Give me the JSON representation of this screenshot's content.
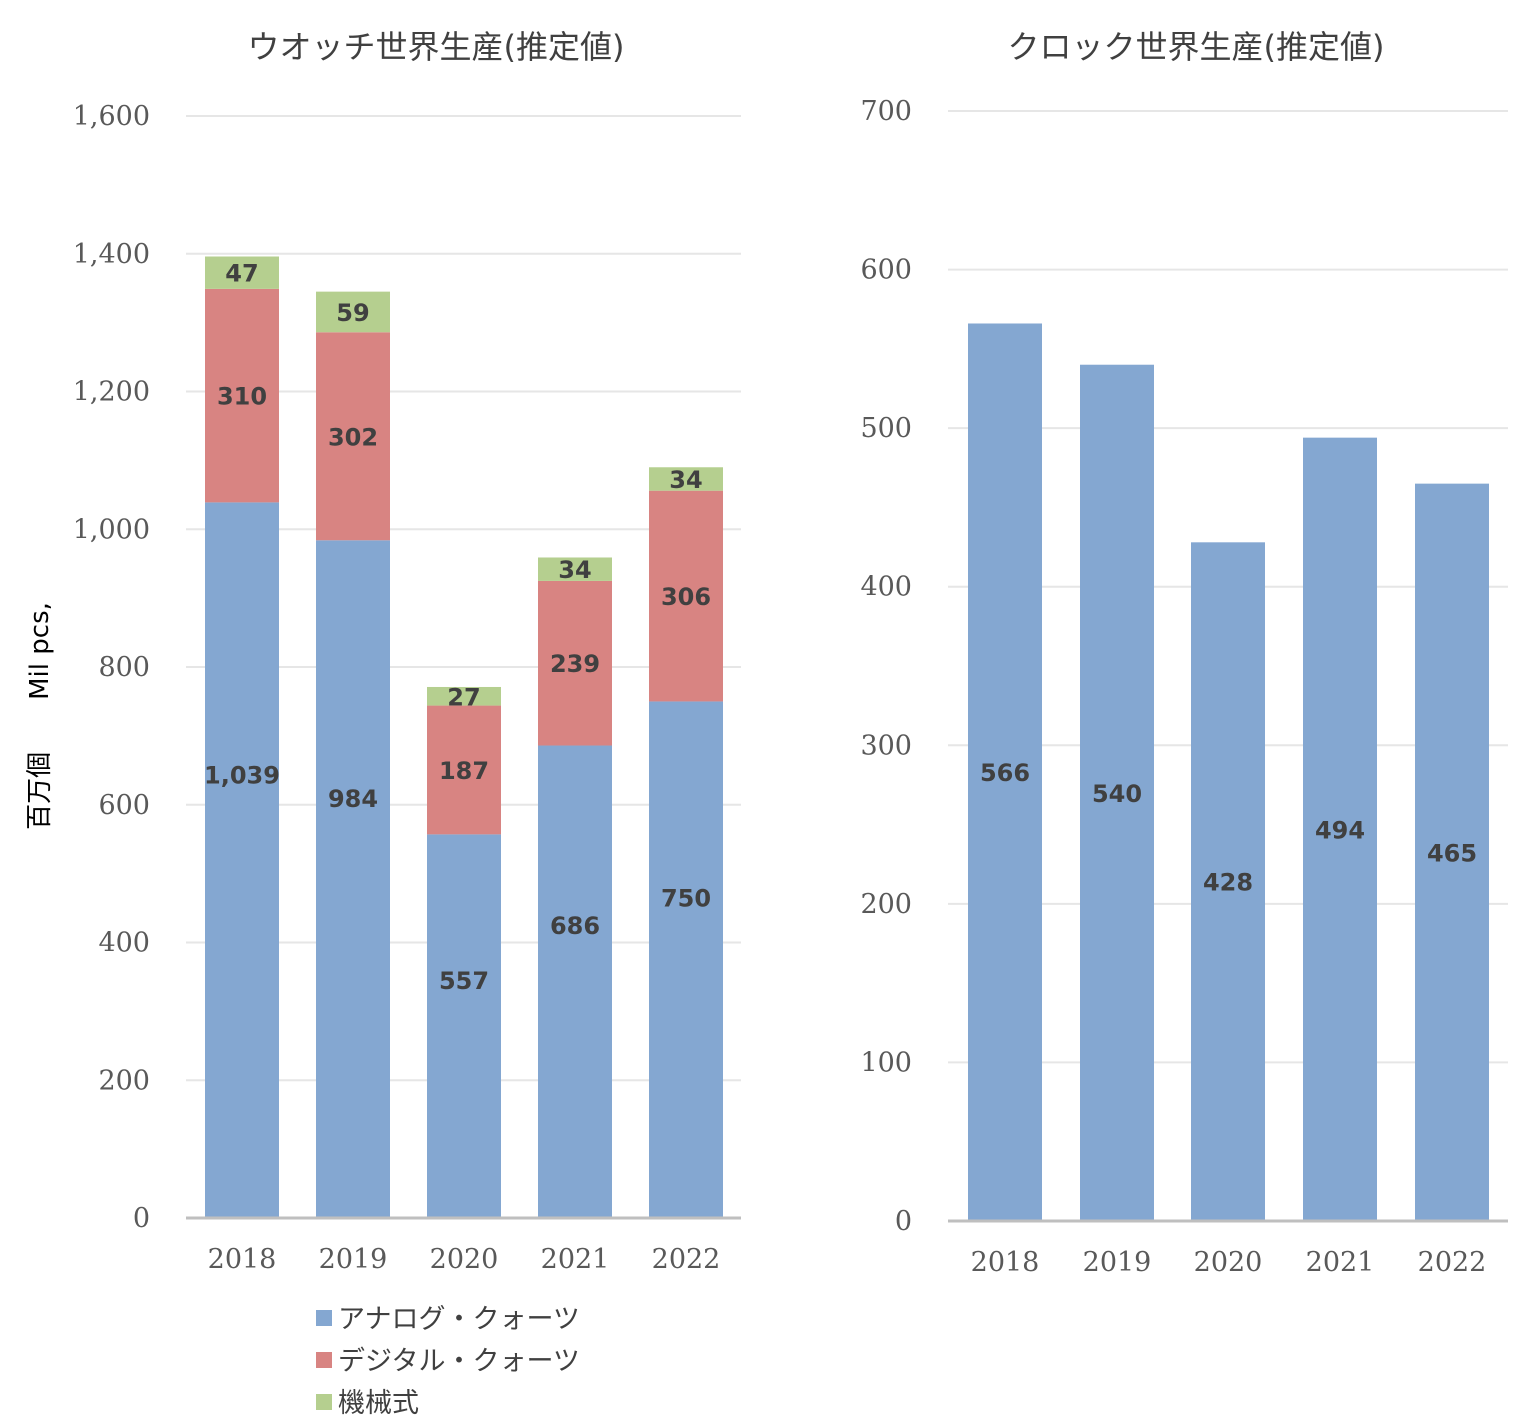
{
  "ylabel": "百万個　　Mil pcs,",
  "chart_data": [
    {
      "type": "bar",
      "stacked": true,
      "title": "ウオッチ世界生産(推定値)",
      "categories": [
        "2018",
        "2019",
        "2020",
        "2021",
        "2022"
      ],
      "ylim": [
        0,
        1600
      ],
      "yticks": [
        0,
        200,
        400,
        600,
        800,
        1000,
        1200,
        1400,
        1600
      ],
      "ytick_labels": [
        "0",
        "200",
        "400",
        "600",
        "800",
        "1,000",
        "1,200",
        "1,400",
        "1,600"
      ],
      "series": [
        {
          "name": "アナログ・クォーツ",
          "color": "#84a7d1",
          "values": [
            1039,
            984,
            557,
            686,
            750
          ],
          "labels": [
            "1,039",
            "984",
            "557",
            "686",
            "750"
          ]
        },
        {
          "name": "デジタル・クォーツ",
          "color": "#d88482",
          "values": [
            310,
            302,
            187,
            239,
            306
          ],
          "labels": [
            "310",
            "302",
            "187",
            "239",
            "306"
          ]
        },
        {
          "name": "機械式",
          "color": "#b5cf8f",
          "values": [
            47,
            59,
            27,
            34,
            34
          ],
          "labels": [
            "47",
            "59",
            "27",
            "34",
            "34"
          ]
        }
      ],
      "grid": true,
      "legend": "bottom"
    },
    {
      "type": "bar",
      "title": "クロック世界生産(推定値)",
      "categories": [
        "2018",
        "2019",
        "2020",
        "2021",
        "2022"
      ],
      "ylim": [
        0,
        700
      ],
      "yticks": [
        0,
        100,
        200,
        300,
        400,
        500,
        600,
        700
      ],
      "ytick_labels": [
        "0",
        "100",
        "200",
        "300",
        "400",
        "500",
        "600",
        "700"
      ],
      "series": [
        {
          "color": "#84a7d1",
          "values": [
            566,
            540,
            428,
            494,
            465
          ],
          "labels": [
            "566",
            "540",
            "428",
            "494",
            "465"
          ]
        }
      ],
      "grid": true
    }
  ]
}
